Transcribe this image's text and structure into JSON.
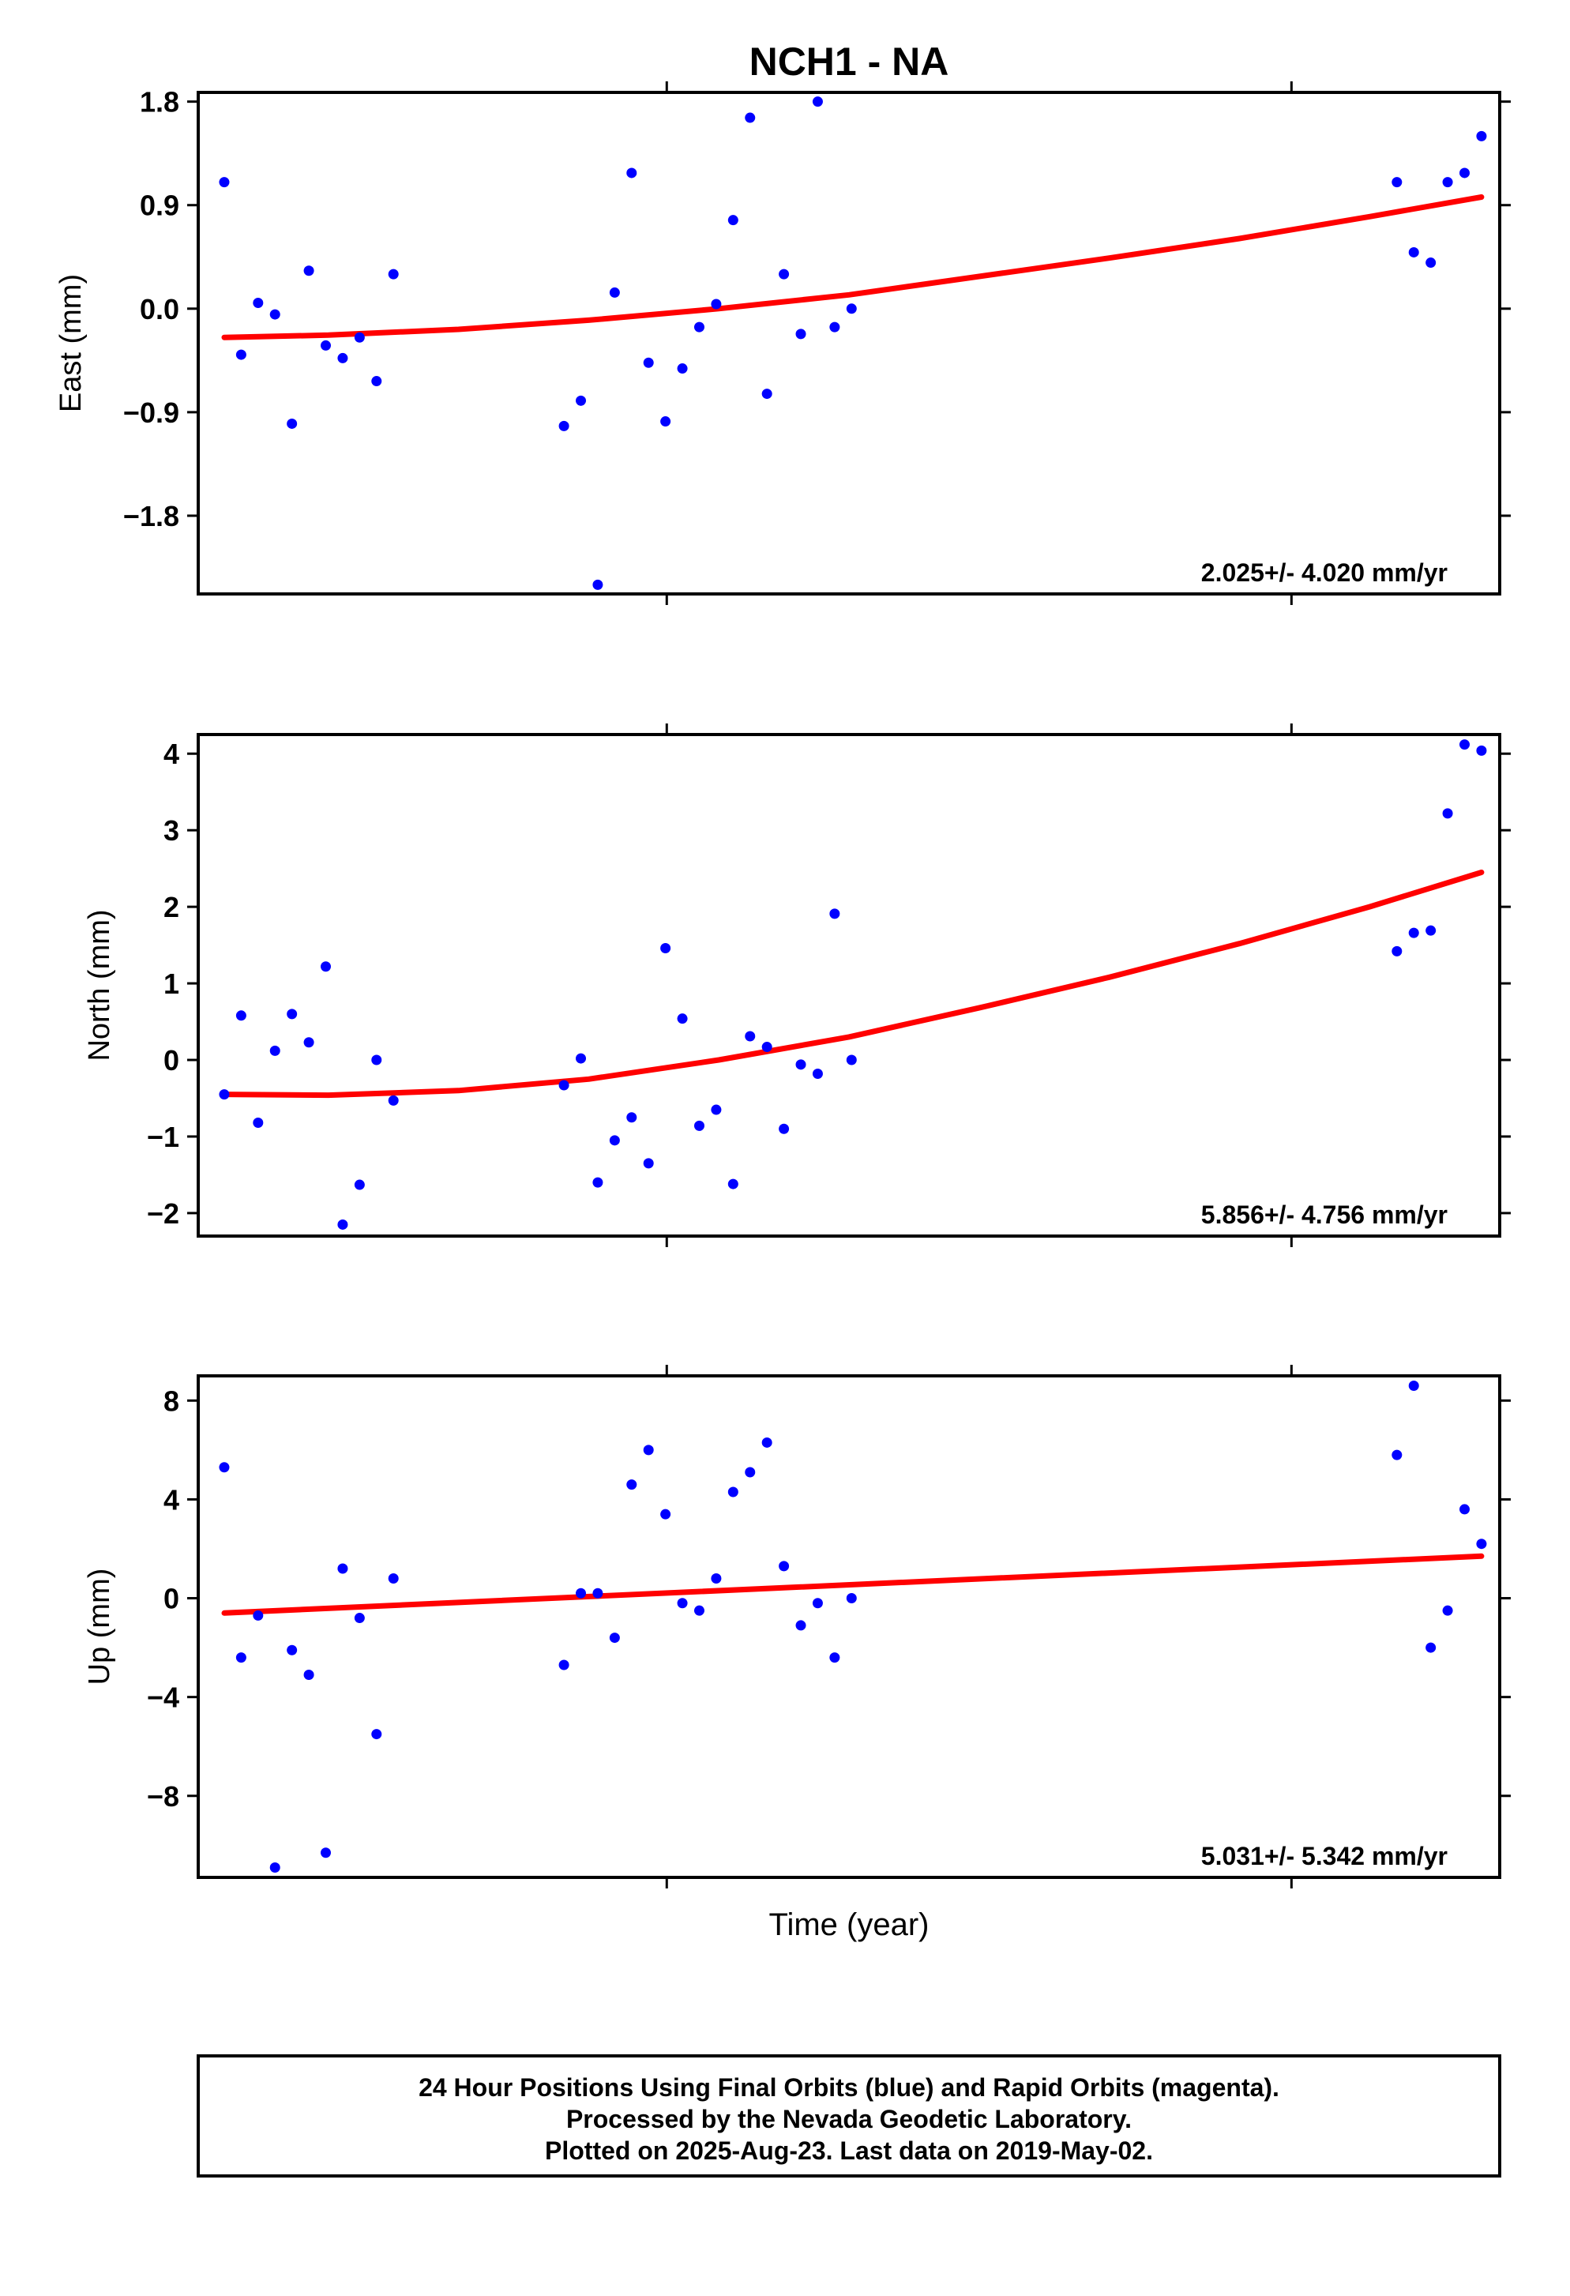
{
  "title": "NCH1 - NA",
  "xlabel": "Time (year)",
  "footer": [
    "24 Hour Positions Using Final Orbits (blue) and Rapid Orbits (magenta).",
    "Processed by the Nevada Geodetic Laboratory.",
    "Plotted on 2025-Aug-23. Last data on 2019-May-02."
  ],
  "colors": {
    "points": "#0000ff",
    "trend": "#ff0000",
    "frame": "#000000"
  },
  "chart_data": [
    {
      "type": "scatter",
      "ylabel": "East (mm)",
      "rate": "2.025+/- 4.020 mm/yr",
      "yticks": [
        1.8,
        0.9,
        0.0,
        -0.9,
        -1.8
      ],
      "ytick_labels": [
        "1.8",
        "0.9",
        "0.0",
        "−0.9",
        "−1.8"
      ],
      "ylim": [
        -2.48,
        1.88
      ],
      "xlim": [
        0,
        100
      ],
      "xticks": [
        36,
        84
      ],
      "x": [
        2,
        3.3,
        4.6,
        5.9,
        7.2,
        8.5,
        9.8,
        11.1,
        12.4,
        13.7,
        15,
        28.1,
        29.4,
        30.7,
        32,
        33.3,
        34.6,
        35.9,
        37.2,
        38.5,
        39.8,
        41.1,
        42.4,
        43.7,
        45,
        46.3,
        47.6,
        48.9,
        50.2,
        92.1,
        93.4,
        94.7,
        96,
        97.3,
        98.6
      ],
      "y": [
        1.1,
        -0.4,
        0.05,
        -0.05,
        -1.0,
        0.33,
        -0.32,
        -0.43,
        -0.25,
        -0.63,
        0.3,
        -1.02,
        -0.8,
        -2.4,
        0.14,
        1.18,
        -0.47,
        -0.98,
        -0.52,
        -0.16,
        0.04,
        0.77,
        1.66,
        -0.74,
        0.3,
        -0.22,
        1.8,
        -0.16,
        0.0,
        1.1,
        0.49,
        0.4,
        1.1,
        1.18,
        1.5
      ],
      "trend_x": [
        2,
        10,
        20,
        30,
        40,
        50,
        60,
        70,
        80,
        90,
        98.6
      ],
      "trend_y": [
        -0.25,
        -0.23,
        -0.18,
        -0.1,
        0.0,
        0.12,
        0.28,
        0.44,
        0.61,
        0.8,
        0.97
      ]
    },
    {
      "type": "scatter",
      "ylabel": "North (mm)",
      "rate": "5.856+/- 4.756 mm/yr",
      "yticks": [
        4,
        3,
        2,
        1,
        0,
        -1,
        -2
      ],
      "ytick_labels": [
        "4",
        "3",
        "2",
        "1",
        "0",
        "−1",
        "−2"
      ],
      "ylim": [
        -2.3,
        4.25
      ],
      "xlim": [
        0,
        100
      ],
      "xticks": [
        36,
        84
      ],
      "x": [
        2,
        3.3,
        4.6,
        5.9,
        7.2,
        8.5,
        9.8,
        11.1,
        12.4,
        13.7,
        15,
        28.1,
        29.4,
        30.7,
        32,
        33.3,
        34.6,
        35.9,
        37.2,
        38.5,
        39.8,
        41.1,
        42.4,
        43.7,
        45,
        46.3,
        47.6,
        48.9,
        50.2,
        92.1,
        93.4,
        94.7,
        96,
        97.3,
        98.6
      ],
      "y": [
        -0.45,
        0.58,
        -0.82,
        0.12,
        0.6,
        0.23,
        1.22,
        -2.15,
        -1.63,
        0.0,
        -0.53,
        -0.33,
        0.02,
        -1.6,
        -1.05,
        -0.75,
        -1.35,
        1.46,
        0.54,
        -0.86,
        -0.65,
        -1.62,
        0.31,
        0.17,
        -0.9,
        -0.06,
        -0.18,
        1.91,
        0.0,
        1.42,
        1.66,
        1.69,
        3.22,
        4.12,
        4.04
      ],
      "trend_x": [
        2,
        10,
        20,
        30,
        40,
        50,
        60,
        70,
        80,
        90,
        98.6
      ],
      "trend_y": [
        -0.45,
        -0.46,
        -0.4,
        -0.25,
        0.0,
        0.3,
        0.68,
        1.08,
        1.52,
        2.0,
        2.45
      ]
    },
    {
      "type": "scatter",
      "ylabel": "Up (mm)",
      "rate": "5.031+/- 5.342 mm/yr",
      "yticks": [
        8,
        4,
        0,
        -4,
        -8
      ],
      "ytick_labels": [
        "8",
        "4",
        "0",
        "−4",
        "−8"
      ],
      "ylim": [
        -11.3,
        9.0
      ],
      "xlim": [
        0,
        100
      ],
      "xticks": [
        36,
        84
      ],
      "x": [
        2,
        3.3,
        4.6,
        5.9,
        7.2,
        8.5,
        9.8,
        11.1,
        12.4,
        13.7,
        15,
        28.1,
        29.4,
        30.7,
        32,
        33.3,
        34.6,
        35.9,
        37.2,
        38.5,
        39.8,
        41.1,
        42.4,
        43.7,
        45,
        46.3,
        47.6,
        48.9,
        50.2,
        92.1,
        93.4,
        94.7,
        96,
        97.3,
        98.6
      ],
      "y": [
        5.3,
        -2.4,
        -0.7,
        -10.9,
        -2.1,
        -3.1,
        -10.3,
        1.2,
        -0.8,
        -5.5,
        0.8,
        -2.7,
        0.2,
        0.2,
        -1.6,
        4.6,
        6.0,
        3.4,
        -0.2,
        -0.5,
        0.8,
        4.3,
        5.1,
        6.3,
        1.3,
        -1.1,
        -0.2,
        -2.4,
        0.0,
        5.8,
        8.6,
        -2.0,
        -0.5,
        3.6,
        2.2
      ],
      "trend_x": [
        2,
        98.6
      ],
      "trend_y": [
        -0.6,
        1.7
      ]
    }
  ]
}
